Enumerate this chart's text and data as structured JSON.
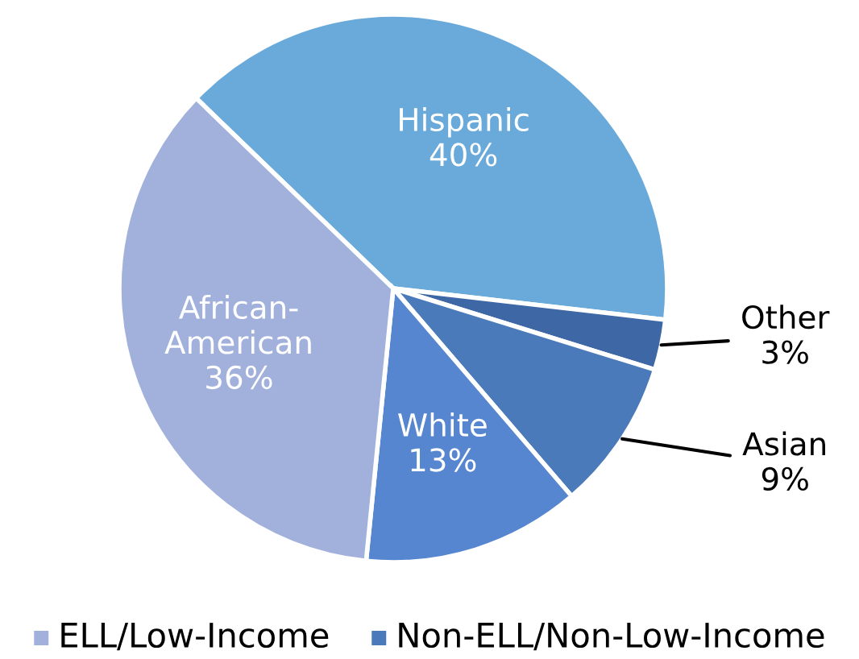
{
  "chart_data": {
    "type": "pie",
    "categories": [
      "Hispanic",
      "Other",
      "Asian",
      "White",
      "African-American"
    ],
    "values": [
      40,
      3,
      9,
      13,
      36
    ],
    "colors": [
      "#6aaadb",
      "#3e67a5",
      "#4a7aba",
      "#5586cf",
      "#a1b1dc"
    ],
    "value_labels": [
      "40%",
      "3%",
      "9%",
      "13%",
      "36%"
    ],
    "annotations": [
      "ELL/Low-Income",
      "Non-ELL/Non-Low-Income"
    ]
  }
}
